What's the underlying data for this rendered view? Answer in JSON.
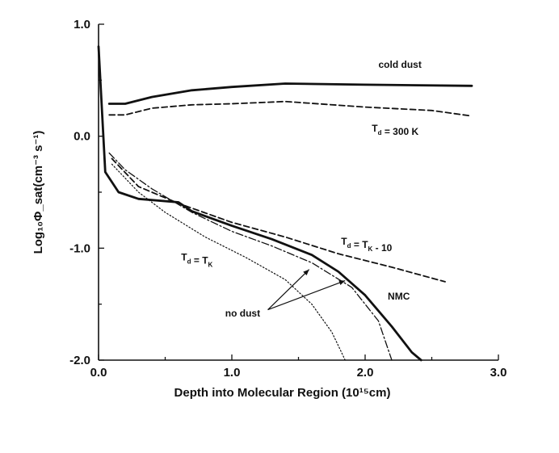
{
  "chart_data": {
    "type": "line",
    "title": "",
    "xlabel": "Depth into Molecular Region (10¹⁵cm)",
    "ylabel": "Log₁₀Φ_sat(cm⁻³ s⁻¹)",
    "xlim": [
      0.0,
      3.0
    ],
    "ylim": [
      -2.0,
      1.0
    ],
    "grid": false,
    "legend": "none",
    "x_ticks": [
      "0.0",
      "1.0",
      "2.0",
      "3.0"
    ],
    "y_ticks": [
      "1.0",
      "0.0",
      "-1.0",
      "-2.0"
    ],
    "series": [
      {
        "name": "cold dust",
        "style": "solid-thick",
        "points": [
          [
            0.08,
            0.29
          ],
          [
            0.2,
            0.29
          ],
          [
            0.4,
            0.35
          ],
          [
            0.7,
            0.41
          ],
          [
            1.0,
            0.44
          ],
          [
            1.4,
            0.47
          ],
          [
            2.0,
            0.46
          ],
          [
            2.8,
            0.45
          ]
        ]
      },
      {
        "name": "T_d = 300 K",
        "style": "dashed",
        "points": [
          [
            0.08,
            0.19
          ],
          [
            0.2,
            0.19
          ],
          [
            0.4,
            0.25
          ],
          [
            0.7,
            0.28
          ],
          [
            1.0,
            0.29
          ],
          [
            1.4,
            0.31
          ],
          [
            2.0,
            0.26
          ],
          [
            2.5,
            0.23
          ],
          [
            2.8,
            0.18
          ]
        ]
      },
      {
        "name": "NMC",
        "style": "solid-thick",
        "points": [
          [
            0.0,
            0.8
          ],
          [
            0.05,
            -0.32
          ],
          [
            0.15,
            -0.5
          ],
          [
            0.3,
            -0.56
          ],
          [
            0.6,
            -0.59
          ],
          [
            0.7,
            -0.67
          ],
          [
            1.0,
            -0.8
          ],
          [
            1.3,
            -0.92
          ],
          [
            1.6,
            -1.06
          ],
          [
            1.8,
            -1.21
          ],
          [
            2.0,
            -1.42
          ],
          [
            2.2,
            -1.7
          ],
          [
            2.35,
            -1.93
          ],
          [
            2.42,
            -2.0
          ]
        ]
      },
      {
        "name": "T_d = T_K - 10",
        "style": "dashed",
        "points": [
          [
            0.1,
            -0.2
          ],
          [
            0.3,
            -0.45
          ],
          [
            0.6,
            -0.6
          ],
          [
            1.0,
            -0.77
          ],
          [
            1.4,
            -0.9
          ],
          [
            1.8,
            -1.05
          ],
          [
            2.2,
            -1.17
          ],
          [
            2.6,
            -1.3
          ]
        ]
      },
      {
        "name": "no dust",
        "style": "dash-dot",
        "points": [
          [
            0.08,
            -0.15
          ],
          [
            0.2,
            -0.3
          ],
          [
            0.4,
            -0.47
          ],
          [
            0.7,
            -0.68
          ],
          [
            1.0,
            -0.85
          ],
          [
            1.3,
            -0.98
          ],
          [
            1.6,
            -1.13
          ],
          [
            1.9,
            -1.35
          ],
          [
            2.1,
            -1.65
          ],
          [
            2.2,
            -2.0
          ]
        ]
      },
      {
        "name": "T_d = T_K",
        "style": "dotted",
        "points": [
          [
            0.1,
            -0.25
          ],
          [
            0.3,
            -0.5
          ],
          [
            0.5,
            -0.68
          ],
          [
            0.8,
            -0.9
          ],
          [
            1.1,
            -1.08
          ],
          [
            1.4,
            -1.28
          ],
          [
            1.6,
            -1.5
          ],
          [
            1.75,
            -1.75
          ],
          [
            1.85,
            -2.0
          ]
        ]
      }
    ],
    "annotations": [
      {
        "text": "cold dust",
        "x": 2.1,
        "y": 0.61
      },
      {
        "text": "T_d = 300 K",
        "x": 2.05,
        "y": 0.04
      },
      {
        "text": "T_d = T_K - 10",
        "x": 1.82,
        "y": -0.97
      },
      {
        "text": "T_d = T_K",
        "x": 0.62,
        "y": -1.11
      },
      {
        "text": "NMC",
        "x": 2.17,
        "y": -1.46
      },
      {
        "text": "no dust",
        "x": 0.95,
        "y": -1.61
      }
    ],
    "arrows": [
      {
        "from": [
          1.27,
          -1.55
        ],
        "to": [
          1.58,
          -1.19
        ]
      },
      {
        "from": [
          1.27,
          -1.55
        ],
        "to": [
          1.85,
          -1.29
        ]
      }
    ]
  }
}
